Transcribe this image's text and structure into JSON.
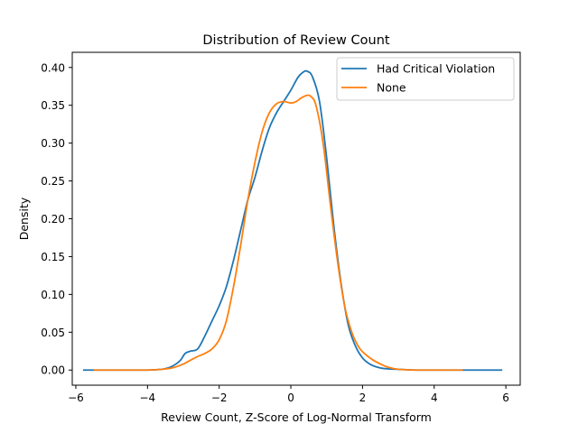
{
  "chart_data": {
    "type": "line",
    "title": "Distribution of Review Count",
    "xlabel": "Review Count, Z-Score of Log-Normal Transform",
    "ylabel": "Density",
    "xlim": [
      -6.1,
      6.4
    ],
    "ylim": [
      -0.02,
      0.42
    ],
    "xticks": [
      -6,
      -4,
      -2,
      0,
      2,
      4,
      6
    ],
    "yticks": [
      0.0,
      0.05,
      0.1,
      0.15,
      0.2,
      0.25,
      0.3,
      0.35,
      0.4
    ],
    "xtick_labels": [
      "−6",
      "−4",
      "−2",
      "0",
      "2",
      "4",
      "6"
    ],
    "ytick_labels": [
      "0.00",
      "0.05",
      "0.10",
      "0.15",
      "0.20",
      "0.25",
      "0.30",
      "0.35",
      "0.40"
    ],
    "grid": false,
    "legend_position": "top-right",
    "series": [
      {
        "name": "Had Critical Violation",
        "color": "#1f77b4",
        "points": [
          [
            -5.8,
            0.0
          ],
          [
            -4.5,
            0.0
          ],
          [
            -4.0,
            0.0
          ],
          [
            -3.6,
            0.001
          ],
          [
            -3.35,
            0.004
          ],
          [
            -3.1,
            0.012
          ],
          [
            -2.95,
            0.022
          ],
          [
            -2.8,
            0.025
          ],
          [
            -2.6,
            0.028
          ],
          [
            -2.4,
            0.045
          ],
          [
            -2.2,
            0.065
          ],
          [
            -2.0,
            0.085
          ],
          [
            -1.8,
            0.11
          ],
          [
            -1.6,
            0.145
          ],
          [
            -1.4,
            0.185
          ],
          [
            -1.2,
            0.225
          ],
          [
            -1.0,
            0.255
          ],
          [
            -0.8,
            0.29
          ],
          [
            -0.6,
            0.32
          ],
          [
            -0.4,
            0.34
          ],
          [
            -0.2,
            0.355
          ],
          [
            0.0,
            0.37
          ],
          [
            0.2,
            0.387
          ],
          [
            0.35,
            0.394
          ],
          [
            0.45,
            0.395
          ],
          [
            0.6,
            0.388
          ],
          [
            0.8,
            0.355
          ],
          [
            1.0,
            0.28
          ],
          [
            1.2,
            0.19
          ],
          [
            1.4,
            0.115
          ],
          [
            1.6,
            0.06
          ],
          [
            1.8,
            0.032
          ],
          [
            2.0,
            0.016
          ],
          [
            2.2,
            0.008
          ],
          [
            2.4,
            0.004
          ],
          [
            2.6,
            0.002
          ],
          [
            3.0,
            0.001
          ],
          [
            3.5,
            0.0
          ],
          [
            4.5,
            0.0
          ],
          [
            5.9,
            0.0
          ]
        ]
      },
      {
        "name": "None",
        "color": "#ff7f0e",
        "points": [
          [
            -5.5,
            0.0
          ],
          [
            -4.5,
            0.0
          ],
          [
            -4.0,
            0.0
          ],
          [
            -3.6,
            0.001
          ],
          [
            -3.3,
            0.003
          ],
          [
            -3.0,
            0.008
          ],
          [
            -2.8,
            0.013
          ],
          [
            -2.6,
            0.018
          ],
          [
            -2.4,
            0.022
          ],
          [
            -2.2,
            0.028
          ],
          [
            -2.0,
            0.04
          ],
          [
            -1.8,
            0.065
          ],
          [
            -1.6,
            0.11
          ],
          [
            -1.4,
            0.165
          ],
          [
            -1.2,
            0.225
          ],
          [
            -1.0,
            0.275
          ],
          [
            -0.8,
            0.315
          ],
          [
            -0.6,
            0.34
          ],
          [
            -0.4,
            0.352
          ],
          [
            -0.2,
            0.355
          ],
          [
            0.0,
            0.353
          ],
          [
            0.15,
            0.355
          ],
          [
            0.3,
            0.36
          ],
          [
            0.45,
            0.363
          ],
          [
            0.55,
            0.362
          ],
          [
            0.7,
            0.35
          ],
          [
            0.9,
            0.3
          ],
          [
            1.1,
            0.22
          ],
          [
            1.3,
            0.145
          ],
          [
            1.5,
            0.085
          ],
          [
            1.7,
            0.05
          ],
          [
            1.9,
            0.03
          ],
          [
            2.1,
            0.02
          ],
          [
            2.3,
            0.013
          ],
          [
            2.5,
            0.008
          ],
          [
            2.7,
            0.004
          ],
          [
            3.0,
            0.001
          ],
          [
            3.5,
            0.0
          ],
          [
            4.5,
            0.0
          ],
          [
            4.8,
            0.0
          ]
        ]
      }
    ]
  }
}
